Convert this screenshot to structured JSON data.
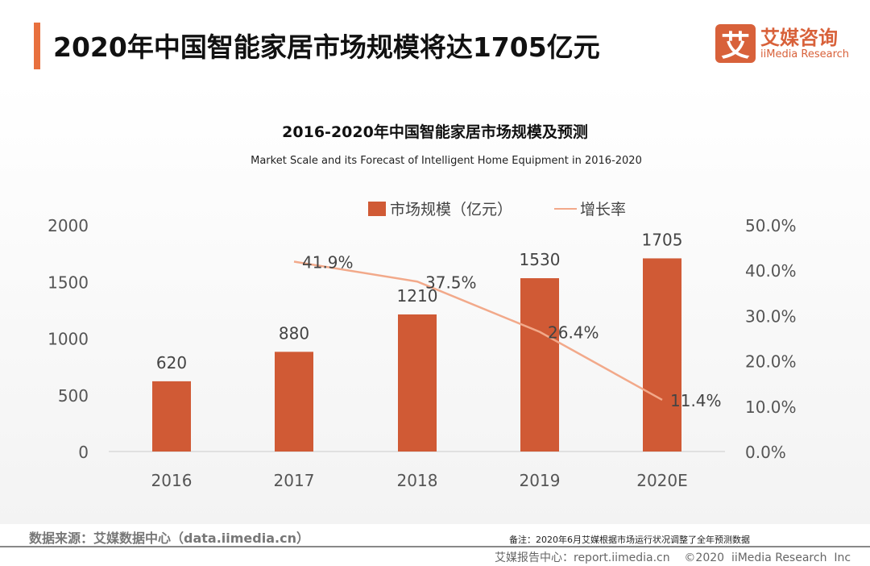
{
  "header": {
    "title": "2020年中国智能家居市场规模将达1705亿元",
    "logo_mark": "艾",
    "logo_cn": "艾媒咨询",
    "logo_en": "iiMedia Research"
  },
  "chart_data": {
    "type": "bar+line",
    "title": "2016-2020年中国智能家居市场规模及预测",
    "subtitle": "Market Scale and its Forecast of Intelligent Home Equipment in 2016-2020",
    "categories": [
      "2016",
      "2017",
      "2018",
      "2019",
      "2020E"
    ],
    "series": [
      {
        "name": "市场规模（亿元）",
        "type": "bar",
        "axis": "left",
        "values": [
          620,
          880,
          1210,
          1530,
          1705
        ],
        "labels": [
          "620",
          "880",
          "1210",
          "1530",
          "1705"
        ],
        "color": "#d05a35"
      },
      {
        "name": "增长率",
        "type": "line",
        "axis": "right",
        "values": [
          null,
          41.9,
          37.5,
          26.4,
          11.4
        ],
        "labels": [
          "",
          "41.9%",
          "37.5%",
          "26.4%",
          "11.4%"
        ],
        "color": "#f2a98a"
      }
    ],
    "left_axis": {
      "ylim": [
        0,
        2000
      ],
      "ticks": [
        "0",
        "500",
        "1000",
        "1500",
        "2000"
      ]
    },
    "right_axis": {
      "ylim": [
        0,
        50
      ],
      "ticks": [
        "0.0%",
        "10.0%",
        "20.0%",
        "30.0%",
        "40.0%",
        "50.0%"
      ]
    },
    "legend": "top-center",
    "grid": false
  },
  "footer": {
    "source": "数据来源：艾媒数据中心（data.iimedia.cn）",
    "note": "备注：2020年6月艾媒根据市场运行状况调整了全年预测数据",
    "report": "艾媒报告中心：report.iimedia.cn    ©2020  iiMedia Research  Inc"
  }
}
